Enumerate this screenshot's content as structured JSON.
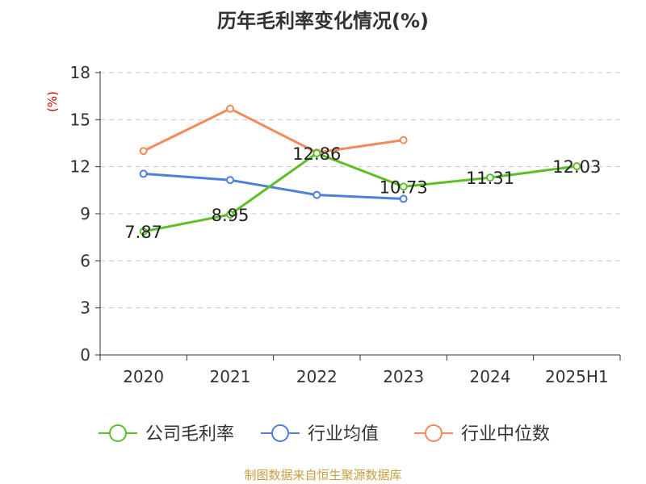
{
  "chart_data": {
    "type": "line",
    "title": "历年毛利率变化情况(%)",
    "ylabel": "(%)",
    "xlabel": "",
    "categories": [
      "2020",
      "2021",
      "2022",
      "2023",
      "2024",
      "2025H1"
    ],
    "ylim": [
      0,
      18
    ],
    "yticks": [
      0,
      3,
      6,
      9,
      12,
      15,
      18
    ],
    "grid": true,
    "legend": "bottom",
    "series": [
      {
        "name": "公司毛利率",
        "color": "#5cbf2a",
        "values": [
          7.87,
          8.95,
          12.86,
          10.73,
          11.31,
          12.03
        ],
        "labels": [
          "7.87",
          "8.95",
          "12.86",
          "10.73",
          "11.31",
          "12.03"
        ]
      },
      {
        "name": "行业均值",
        "color": "#4f7fd9",
        "values": [
          11.55,
          11.15,
          10.2,
          9.95,
          null,
          null
        ]
      },
      {
        "name": "行业中位数",
        "color": "#f5895a",
        "values": [
          13.0,
          15.7,
          12.9,
          13.7,
          null,
          null
        ]
      }
    ]
  },
  "source_note": "制图数据来自恒生聚源数据库",
  "colors": {
    "title": "#333333",
    "ylabel": "#cc0000",
    "source_note": "#c8a040",
    "grid": "#c8c8c8",
    "axis": "#333333"
  }
}
